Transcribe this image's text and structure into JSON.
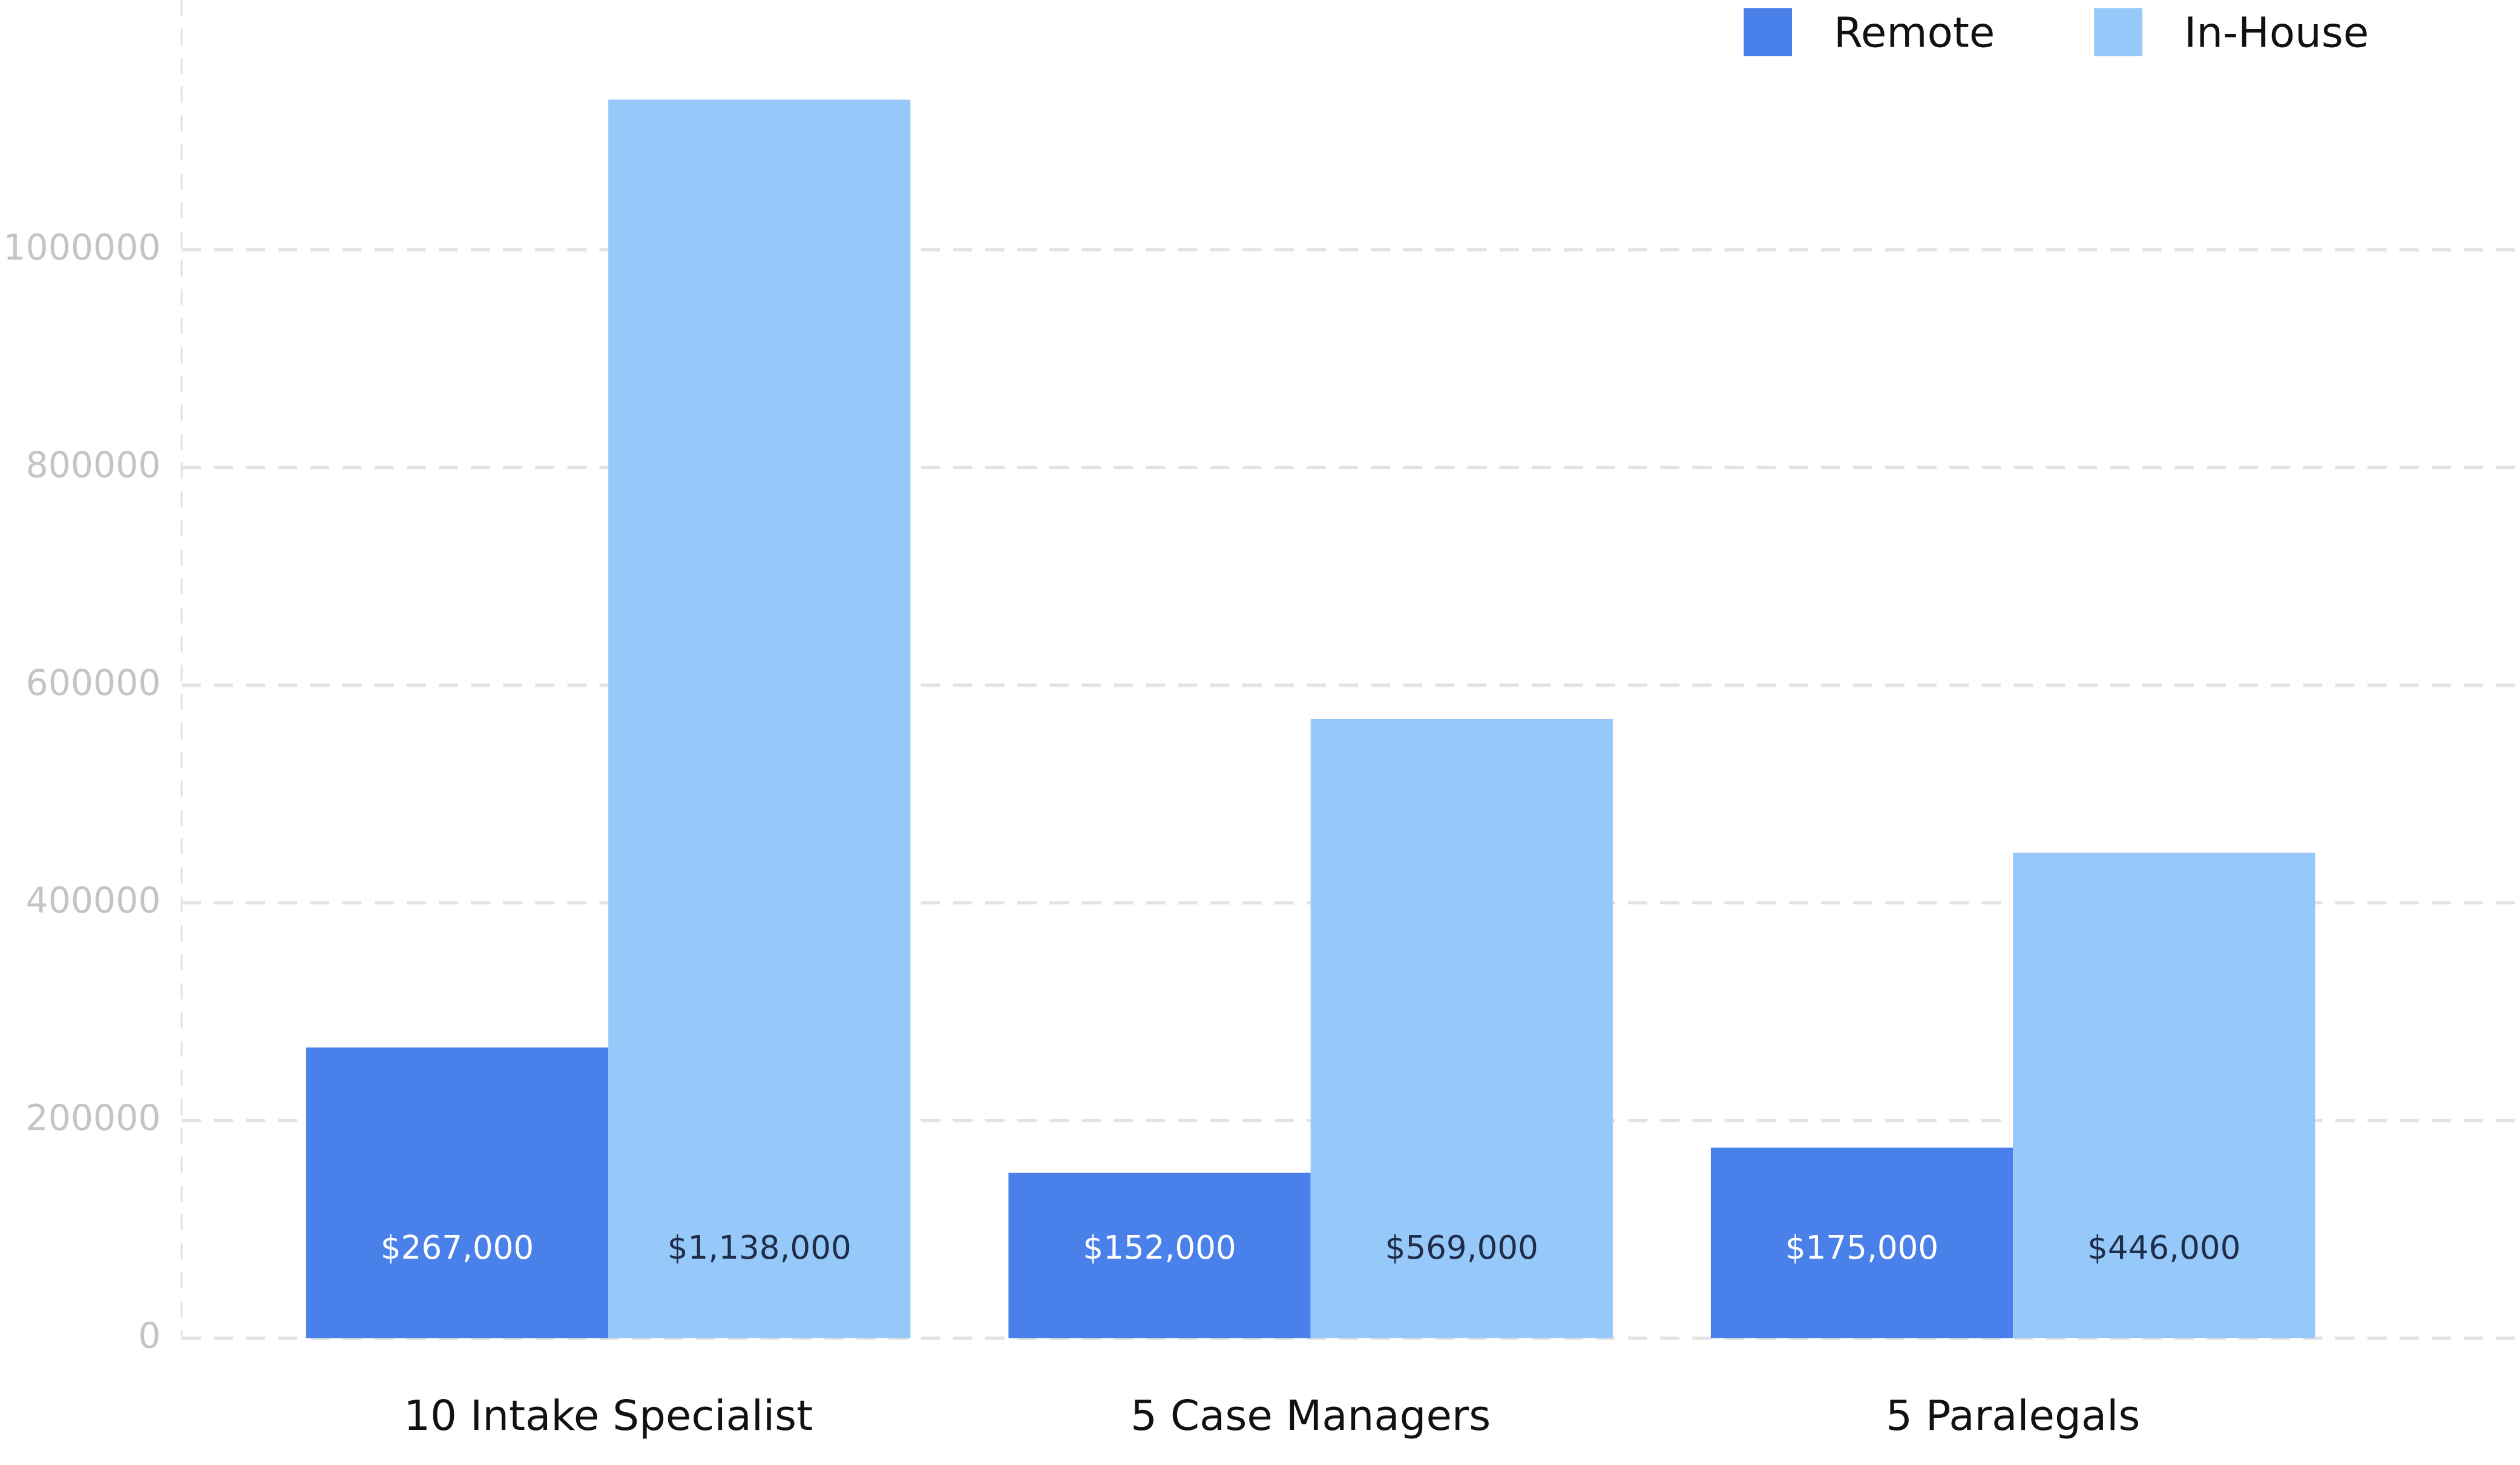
{
  "chart_data": {
    "type": "bar",
    "categories": [
      "10 Intake Specialist",
      "5 Case Managers",
      "5 Paralegals"
    ],
    "series": [
      {
        "name": "Remote",
        "color": "#4a80ea",
        "values": [
          267000,
          152000,
          175000
        ],
        "value_labels": [
          "$267,000",
          "$152,000",
          "$175,000"
        ]
      },
      {
        "name": "In-House",
        "color": "#96c9fa",
        "values": [
          1138000,
          569000,
          446000
        ],
        "value_labels": [
          "$1,138,000",
          "$569,000",
          "$446,000"
        ]
      }
    ],
    "ylim": [
      0,
      1200000
    ],
    "yticks": [
      0,
      200000,
      400000,
      600000,
      800000,
      1000000
    ],
    "grid": true,
    "legend": "top-right"
  }
}
